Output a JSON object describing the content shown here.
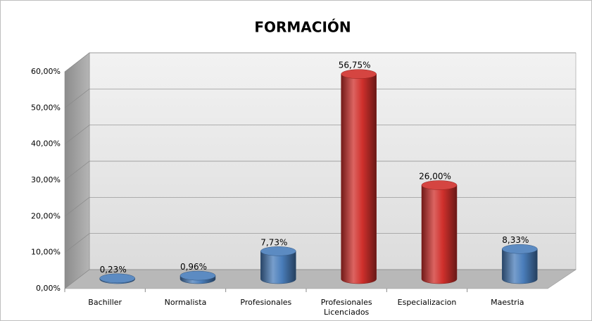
{
  "chart_data": {
    "type": "bar3d",
    "title": "FORMACIÓN",
    "categories": [
      "Bachiller",
      "Normalista",
      "Profesionales",
      "Profesionales Licenciados",
      "Especializacion",
      "Maestria"
    ],
    "values": [
      0.23,
      0.96,
      7.73,
      56.75,
      26.0,
      8.33
    ],
    "value_labels": [
      "0,23%",
      "0,96%",
      "7,73%",
      "56,75%",
      "26,00%",
      "8,33%"
    ],
    "colors": [
      "#4a7ebb",
      "#4a7ebb",
      "#4a7ebb",
      "#d0302c",
      "#d0302c",
      "#4a7ebb"
    ],
    "ylim": [
      0,
      60
    ],
    "yticks": [
      {
        "value": 0,
        "label": "0,00%"
      },
      {
        "value": 10,
        "label": "10,00%"
      },
      {
        "value": 20,
        "label": "20,00%"
      },
      {
        "value": 30,
        "label": "30,00%"
      },
      {
        "value": 40,
        "label": "40,00%"
      },
      {
        "value": 50,
        "label": "50,00%"
      },
      {
        "value": 60,
        "label": "60,00%"
      }
    ],
    "grid": true
  }
}
